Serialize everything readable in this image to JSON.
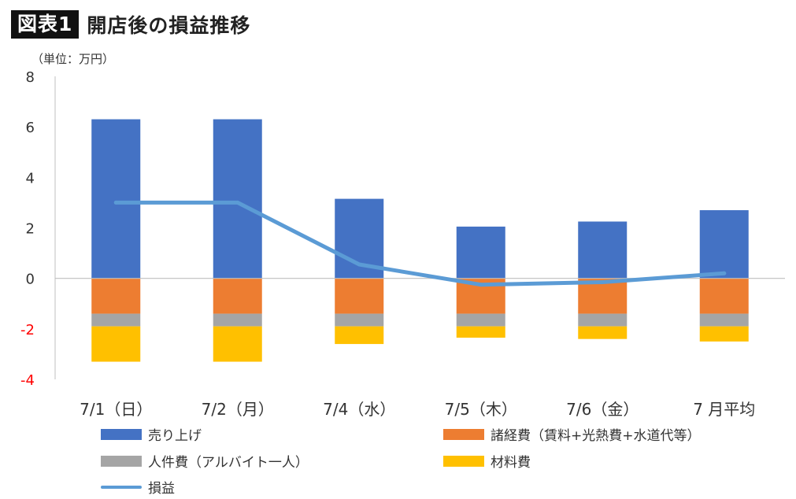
{
  "header": {
    "figure_label": "図表1",
    "title": "開店後の損益推移"
  },
  "unit_label": "（単位：万円）",
  "colors": {
    "sales": "#4472C4",
    "expenses": "#ED7D31",
    "personnel": "#A5A5A5",
    "materials": "#FFC000",
    "profit": "#5B9BD5",
    "negative_tick": "#FF0000"
  },
  "chart_data": {
    "type": "bar",
    "stacked": true,
    "categories": [
      "7/1（日）",
      "7/2（月）",
      "7/4（水）",
      "7/5（木）",
      "7/6（金）",
      "7 月平均"
    ],
    "ylim": [
      -4,
      8
    ],
    "yticks": [
      8,
      6,
      4,
      2,
      0,
      -2,
      -4
    ],
    "grid": false,
    "legend_position": "bottom",
    "series": [
      {
        "name": "売り上げ",
        "kind": "bar",
        "values": [
          6.3,
          6.3,
          3.15,
          2.05,
          2.25,
          2.7
        ]
      },
      {
        "name": "諸経費（賃料+光熱費+水道代等）",
        "kind": "bar",
        "values": [
          -1.4,
          -1.4,
          -1.4,
          -1.4,
          -1.4,
          -1.4
        ]
      },
      {
        "name": "人件費（アルバイト一人）",
        "kind": "bar",
        "values": [
          -0.5,
          -0.5,
          -0.5,
          -0.5,
          -0.5,
          -0.5
        ]
      },
      {
        "name": "材料費",
        "kind": "bar",
        "values": [
          -1.4,
          -1.4,
          -0.7,
          -0.45,
          -0.5,
          -0.6
        ]
      },
      {
        "name": "損益",
        "kind": "line",
        "values": [
          3.0,
          3.0,
          0.55,
          -0.25,
          -0.15,
          0.2
        ]
      }
    ]
  }
}
